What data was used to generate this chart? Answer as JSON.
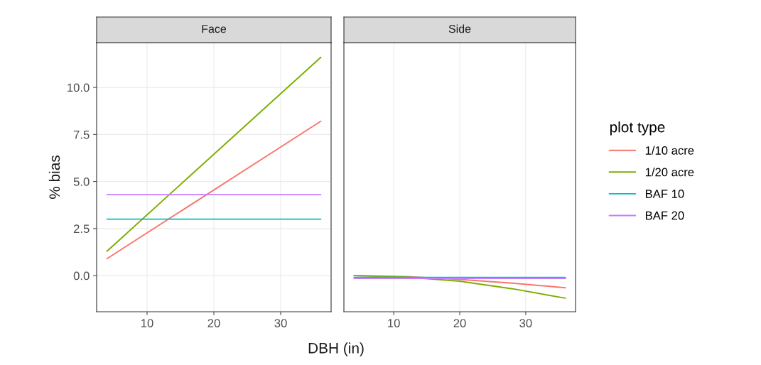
{
  "chart_data": [
    {
      "type": "line",
      "title": "Face",
      "xlabel": "DBH (in)",
      "ylabel": "% bias",
      "xlim": [
        2.45,
        37.55
      ],
      "ylim": [
        -1.92,
        12.38
      ],
      "xticks": [
        10,
        20,
        30
      ],
      "yticks": [
        {
          "value": 0,
          "label": "0.0"
        },
        {
          "value": 2.5,
          "label": "2.5"
        },
        {
          "value": 5,
          "label": "5.0"
        },
        {
          "value": 7.5,
          "label": "7.5"
        },
        {
          "value": 10,
          "label": "10.0"
        }
      ],
      "grid": true,
      "series": [
        {
          "color": "#f8766d",
          "x": [
            4,
            36
          ],
          "values": [
            0.9,
            8.2
          ]
        },
        {
          "color": "#7cae00",
          "x": [
            4,
            36
          ],
          "values": [
            1.3,
            11.6
          ]
        },
        {
          "color": "#00bfc4",
          "x": [
            4,
            36
          ],
          "values": [
            3.0,
            3.0
          ]
        },
        {
          "color": "#c77cff",
          "x": [
            4,
            36
          ],
          "values": [
            4.3,
            4.3
          ]
        }
      ]
    },
    {
      "type": "line",
      "title": "Side",
      "legend_title": "plot type",
      "xlim": [
        2.45,
        37.55
      ],
      "ylim": [
        -1.92,
        12.38
      ],
      "xticks": [
        10,
        20,
        30
      ],
      "tick_labels": "x",
      "grid": true,
      "legend": "right",
      "series": [
        {
          "name": "1/10 acre",
          "color": "#f8766d",
          "x": [
            4,
            12,
            20,
            28,
            36
          ],
          "values": [
            0,
            -0.05,
            -0.2,
            -0.4,
            -0.65
          ]
        },
        {
          "name": "1/20 acre",
          "color": "#7cae00",
          "x": [
            4,
            12,
            20,
            28,
            36
          ],
          "values": [
            0,
            -0.08,
            -0.3,
            -0.7,
            -1.2
          ]
        },
        {
          "name": "BAF 10",
          "color": "#00bfc4",
          "x": [
            4,
            36
          ],
          "values": [
            -0.1,
            -0.1
          ]
        },
        {
          "name": "BAF 20",
          "color": "#c77cff",
          "x": [
            4,
            36
          ],
          "values": [
            -0.15,
            -0.15
          ]
        }
      ]
    }
  ]
}
